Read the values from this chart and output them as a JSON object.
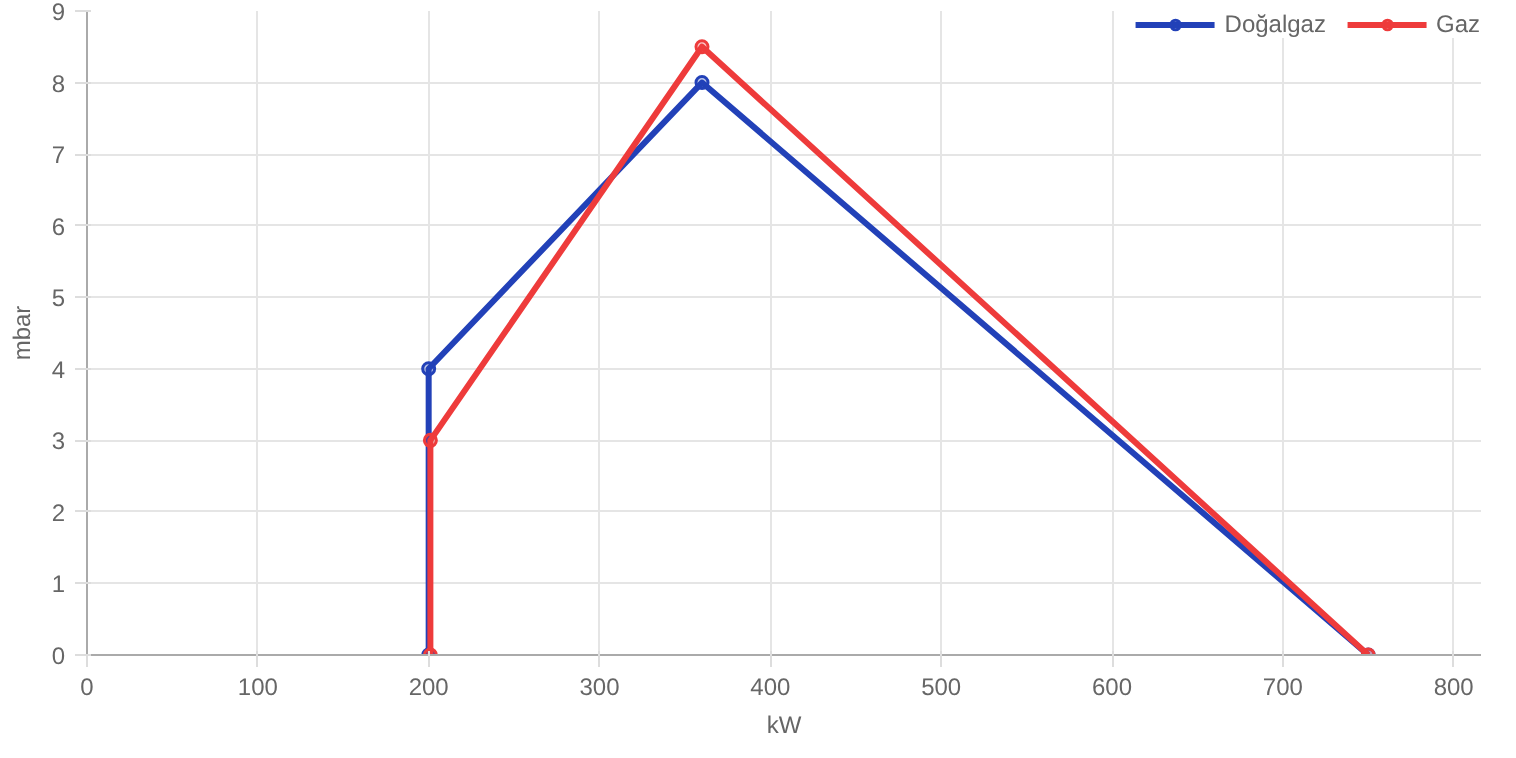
{
  "chart_data": {
    "type": "line",
    "xlabel": "kW",
    "ylabel": "mbar",
    "series": [
      {
        "name": "Doğalgaz",
        "color": "#2241b8",
        "x": [
          200,
          200,
          360,
          750
        ],
        "values": [
          0,
          4,
          8,
          0
        ]
      },
      {
        "name": "Gaz",
        "color": "#ee3b3b",
        "x": [
          201,
          201,
          360,
          750
        ],
        "values": [
          0,
          3,
          8.5,
          0
        ]
      }
    ],
    "xlim": [
      0,
      816
    ],
    "xticks": [
      0,
      100,
      200,
      300,
      400,
      500,
      600,
      700,
      800
    ],
    "ylim": [
      0,
      9
    ],
    "yticks": [
      0,
      1,
      2,
      3,
      4,
      5,
      6,
      7,
      8,
      9
    ],
    "grid": true,
    "legend": "top right",
    "marker": "circle",
    "line_style": "solid"
  }
}
